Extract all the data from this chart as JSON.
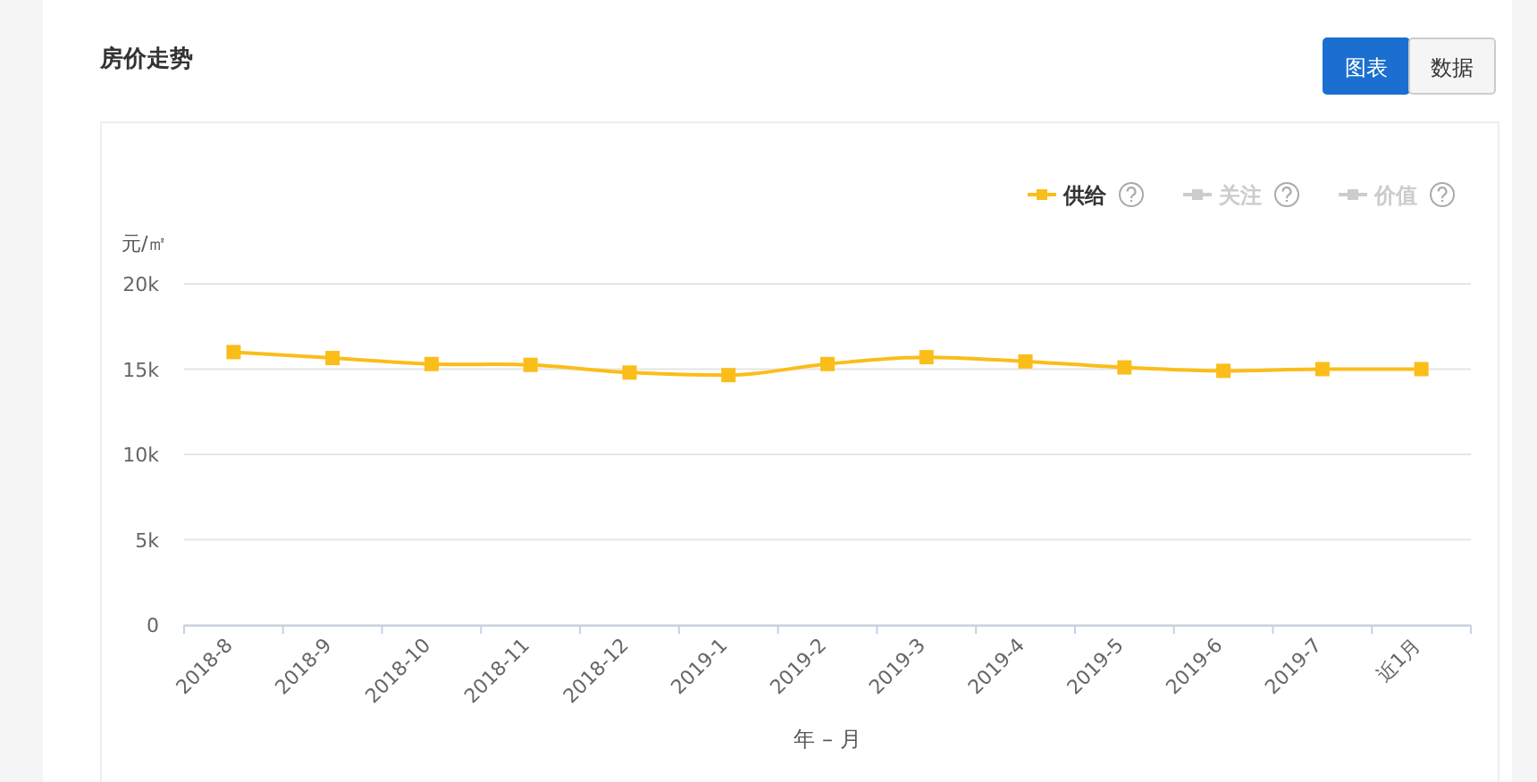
{
  "chart_data": {
    "type": "line",
    "title": "房价走势",
    "ylabel": "元/㎡",
    "xlabel": "年 – 月",
    "categories": [
      "2018-8",
      "2018-9",
      "2018-10",
      "2018-11",
      "2018-12",
      "2019-1",
      "2019-2",
      "2019-3",
      "2019-4",
      "2019-5",
      "2019-6",
      "2019-7",
      "近1月"
    ],
    "series": [
      {
        "name": "供给",
        "color": "#fbbd19",
        "values": [
          16000,
          15650,
          15300,
          15250,
          14800,
          14650,
          15300,
          15700,
          15450,
          15100,
          14900,
          15000,
          15000
        ]
      },
      {
        "name": "关注",
        "color": "#cccccc",
        "values": [
          null,
          null,
          null,
          null,
          null,
          null,
          null,
          null,
          null,
          null,
          null,
          null,
          null
        ]
      },
      {
        "name": "价值",
        "color": "#cccccc",
        "values": [
          null,
          null,
          null,
          null,
          null,
          null,
          null,
          null,
          null,
          null,
          null,
          null,
          null
        ]
      }
    ],
    "ylim": [
      0,
      20000
    ],
    "yticks": [
      0,
      {
        "value": 5000,
        "label": "5k"
      },
      {
        "value": 10000,
        "label": "10k"
      },
      {
        "value": 15000,
        "label": "15k"
      },
      {
        "value": 20000,
        "label": "20k"
      }
    ],
    "grid": "y",
    "legend": "top right",
    "marker": "square",
    "line_style": "solid",
    "annotations": [
      "图表",
      "数据"
    ]
  }
}
